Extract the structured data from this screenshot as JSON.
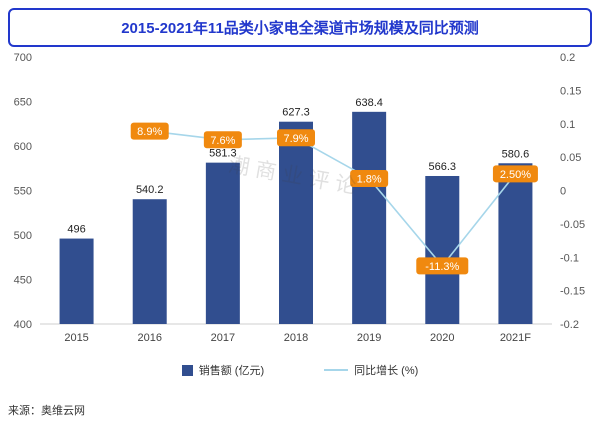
{
  "title": "2015-2021年11品类小家电全渠道市场规模及同比预测",
  "source": "来源：奥维云网",
  "watermark": "潮商业评论",
  "legend": {
    "bars": "销售额 (亿元)",
    "line": "同比增长 (%)"
  },
  "colors": {
    "bar": "#314E8F",
    "line": "#A6D6EA",
    "label_bg": "#F0890F",
    "title": "#2238CC"
  },
  "chart_data": {
    "type": "bar+line",
    "title": "2015-2021年11品类小家电全渠道市场规模及同比预测",
    "categories": [
      "2015",
      "2016",
      "2017",
      "2018",
      "2019",
      "2020",
      "2021F"
    ],
    "series": [
      {
        "name": "销售额 (亿元)",
        "type": "bar",
        "axis": "left",
        "values": [
          496,
          540.2,
          581.3,
          627.3,
          638.4,
          566.3,
          580.6
        ],
        "labels": [
          "496",
          "540.2",
          "581.3",
          "627.3",
          "638.4",
          "566.3",
          "580.6"
        ]
      },
      {
        "name": "同比增长 (%)",
        "type": "line",
        "axis": "right",
        "values": [
          null,
          0.089,
          0.076,
          0.079,
          0.018,
          -0.113,
          0.025
        ],
        "labels": [
          null,
          "8.9%",
          "7.6%",
          "7.9%",
          "1.8%",
          "-11.3%",
          "2.50%"
        ]
      }
    ],
    "left_axis": {
      "min": 400,
      "max": 700,
      "step": 50,
      "ticks": [
        700,
        650,
        600,
        550,
        500,
        450,
        400
      ]
    },
    "right_axis": {
      "min": -0.2,
      "max": 0.2,
      "step": 0.05,
      "ticks": [
        "0.2",
        "0.15",
        "0.1",
        "0.05",
        "0",
        "-0.05",
        "-0.1",
        "-0.15",
        "-0.2"
      ]
    },
    "grid": false,
    "legend_position": "bottom"
  }
}
